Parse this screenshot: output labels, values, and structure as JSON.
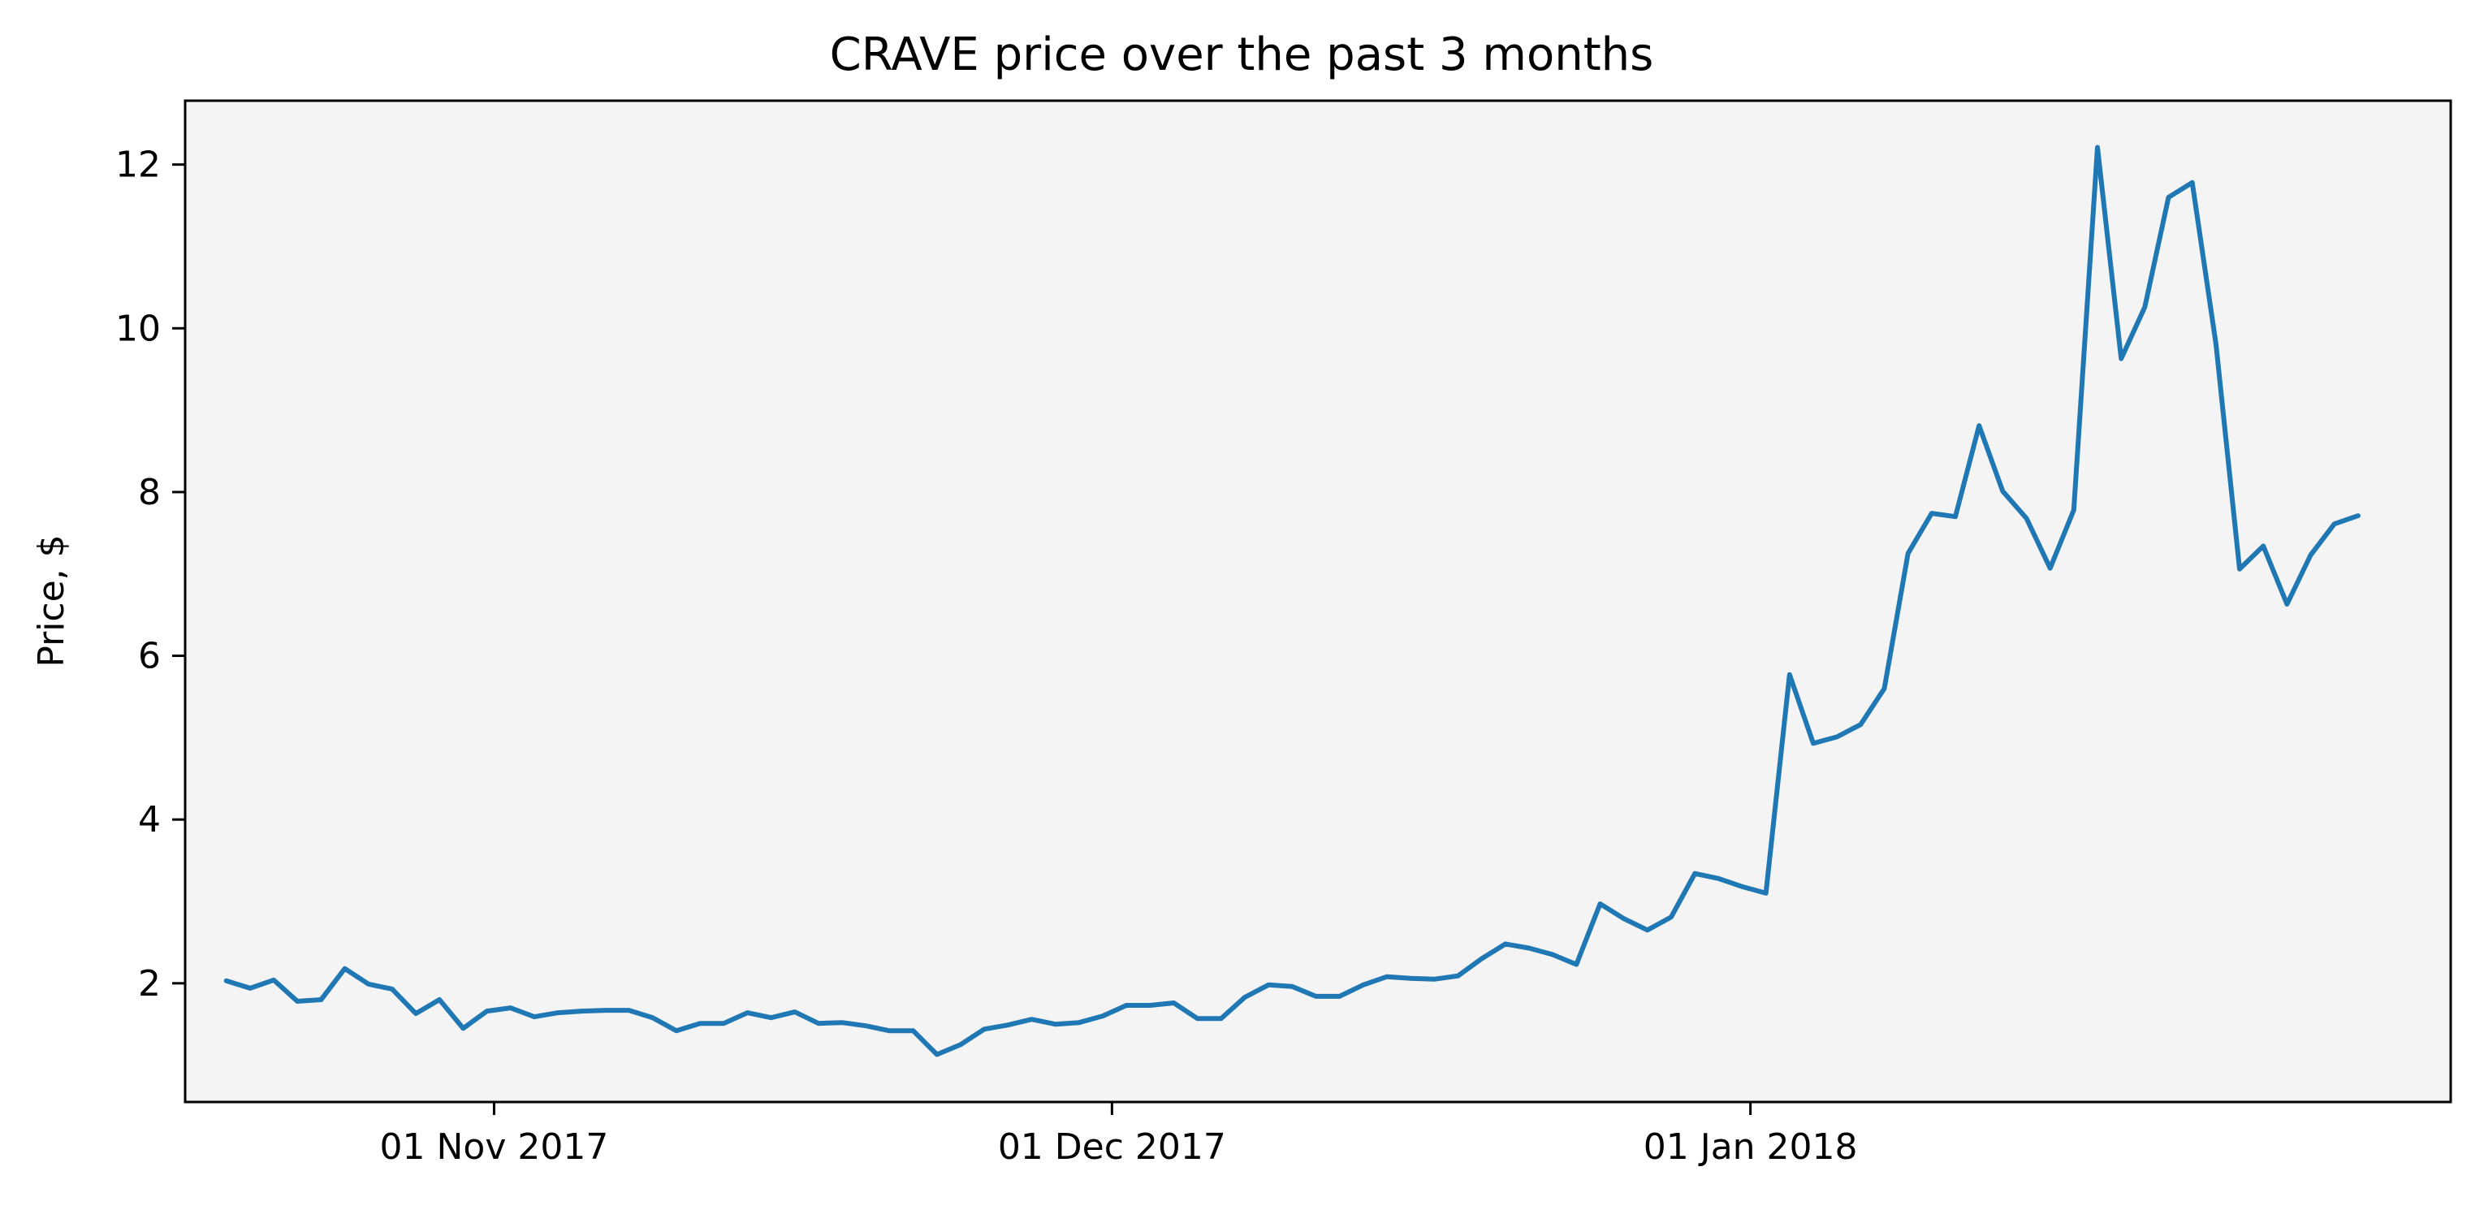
{
  "chart_data": {
    "type": "line",
    "title": "CRAVE price over the past 3 months",
    "xlabel": "",
    "ylabel": "Price, $",
    "x_start": "2017-10-19",
    "x_end": "2018-01-31",
    "xlim": [
      "2017-10-17",
      "2018-02-04"
    ],
    "ylim": [
      0.55,
      12.78
    ],
    "x_ticks": [
      {
        "date": "2017-11-01",
        "label": "01 Nov 2017"
      },
      {
        "date": "2017-12-01",
        "label": "01 Dec 2017"
      },
      {
        "date": "2018-01-01",
        "label": "01 Jan 2018"
      }
    ],
    "y_ticks": [
      2,
      4,
      6,
      8,
      10,
      12
    ],
    "grid": false,
    "colors": {
      "line": "#1f77b4",
      "plot_background": "#f4f4f4",
      "axes": "#000000"
    },
    "series": [
      {
        "values": [
          2.03,
          1.94,
          2.04,
          1.78,
          1.8,
          2.18,
          1.99,
          1.93,
          1.63,
          1.8,
          1.45,
          1.66,
          1.7,
          1.59,
          1.64,
          1.66,
          1.67,
          1.67,
          1.58,
          1.42,
          1.51,
          1.51,
          1.64,
          1.58,
          1.65,
          1.51,
          1.52,
          1.48,
          1.42,
          1.42,
          1.13,
          1.25,
          1.44,
          1.49,
          1.56,
          1.5,
          1.52,
          1.6,
          1.73,
          1.73,
          1.76,
          1.57,
          1.57,
          1.83,
          1.98,
          1.96,
          1.84,
          1.84,
          1.98,
          2.08,
          2.06,
          2.05,
          2.09,
          2.3,
          2.48,
          2.43,
          2.35,
          2.23,
          2.97,
          2.79,
          2.65,
          2.81,
          3.34,
          3.28,
          3.18,
          3.1,
          5.77,
          4.93,
          5.01,
          5.16,
          5.6,
          7.25,
          7.74,
          7.7,
          8.81,
          8.01,
          7.68,
          7.07,
          7.78,
          12.21,
          9.63,
          10.26,
          11.6,
          11.78,
          9.81,
          7.06,
          7.34,
          6.63,
          7.23,
          7.61,
          7.71
        ]
      }
    ]
  }
}
